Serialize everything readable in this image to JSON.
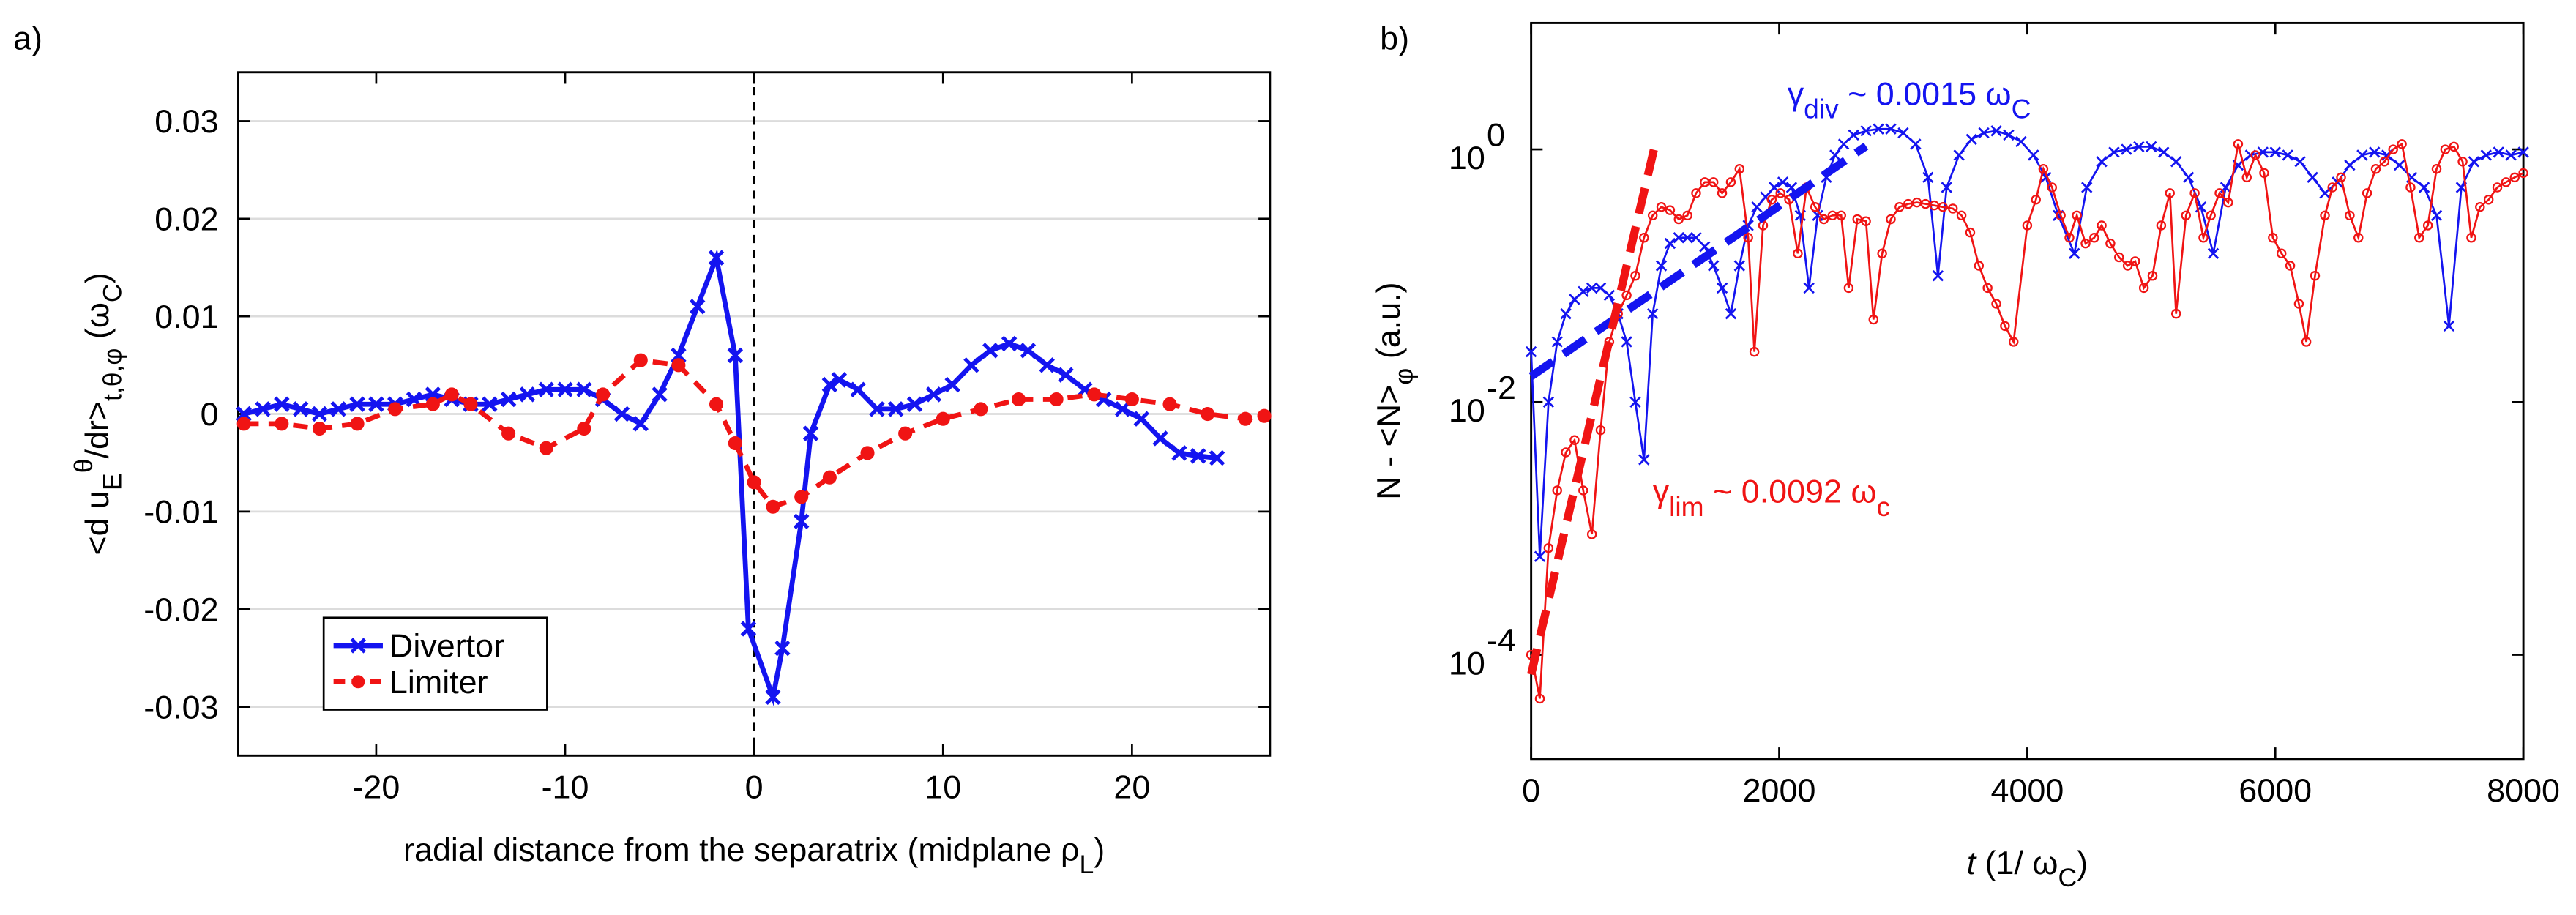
{
  "chart_data": [
    {
      "type": "line",
      "panel_label": "a)",
      "xlabel": [
        "radial distance from the separatrix (midplane ",
        "ρ",
        "L",
        ")"
      ],
      "ylabel": [
        "<d u",
        "E",
        "θ",
        "/dr>",
        "t,θ,φ",
        "  (ω",
        "C",
        ")"
      ],
      "xlim": [
        -27.3,
        27.3
      ],
      "xticks": [
        -20,
        -10,
        0,
        10,
        20
      ],
      "ylim": [
        -0.035,
        0.035
      ],
      "yticks": [
        -0.03,
        -0.02,
        -0.01,
        0,
        0.01,
        0.02,
        0.03
      ],
      "grid": true,
      "vline_x": 0,
      "legend": "lower left",
      "series": [
        {
          "name": "Divertor",
          "color": "#1414f0",
          "marker": "x",
          "linestyle": "solid",
          "x": [
            -27,
            -26,
            -25,
            -24,
            -23,
            -22,
            -21,
            -20,
            -19,
            -18,
            -17,
            -16,
            -15,
            -14,
            -13,
            -12,
            -11,
            -10,
            -9,
            -8,
            -7,
            -6,
            -5,
            -4,
            -3,
            -2,
            -1,
            -0.3,
            1,
            1.5,
            2.5,
            3,
            4,
            4.5,
            5.5,
            6.5,
            7.5,
            8.5,
            9.5,
            10.5,
            11.5,
            12.5,
            13.5,
            14.5,
            15.5,
            16.5,
            17.5,
            18.5,
            19.5,
            20.5,
            21.5,
            22.5,
            23.5,
            24.5
          ],
          "values": [
            0,
            0.0005,
            0.001,
            0.0005,
            0,
            0.0005,
            0.001,
            0.001,
            0.001,
            0.0015,
            0.002,
            0.0015,
            0.001,
            0.001,
            0.0015,
            0.002,
            0.0025,
            0.0025,
            0.0025,
            0.0015,
            0,
            -0.001,
            0.002,
            0.006,
            0.011,
            0.016,
            0.006,
            -0.022,
            -0.029,
            -0.024,
            -0.011,
            -0.002,
            0.003,
            0.0035,
            0.0025,
            0.0005,
            0.0005,
            0.001,
            0.002,
            0.003,
            0.005,
            0.0065,
            0.0072,
            0.0065,
            0.005,
            0.004,
            0.0025,
            0.0015,
            0.0005,
            -0.0005,
            -0.0025,
            -0.004,
            -0.0043,
            -0.0045
          ]
        },
        {
          "name": "Limiter",
          "color": "#f01414",
          "marker": "o",
          "linestyle": "dashed",
          "x": [
            -27,
            -25,
            -23,
            -21,
            -19,
            -17,
            -16,
            -15,
            -13,
            -11,
            -9,
            -8,
            -6,
            -4,
            -2,
            -1,
            0,
            1,
            2.5,
            4,
            6,
            8,
            10,
            12,
            14,
            16,
            18,
            20,
            22,
            24,
            26,
            27
          ],
          "values": [
            -0.001,
            -0.001,
            -0.0015,
            -0.001,
            0.0005,
            0.001,
            0.002,
            0.001,
            -0.002,
            -0.0035,
            -0.0015,
            0.002,
            0.0055,
            0.005,
            0.001,
            -0.003,
            -0.007,
            -0.0095,
            -0.0085,
            -0.0065,
            -0.004,
            -0.002,
            -0.0005,
            0.0005,
            0.0015,
            0.0015,
            0.002,
            0.0015,
            0.001,
            0,
            -0.0005,
            -0.0002
          ]
        }
      ]
    },
    {
      "type": "line",
      "panel_label": "b)",
      "yscale": "log",
      "xlabel": [
        "t",
        " (1/ ω",
        "C",
        ")"
      ],
      "ylabel": [
        "N - <N>",
        "φ",
        "  (a.u.)"
      ],
      "xlim": [
        0,
        8000
      ],
      "xticks": [
        0,
        2000,
        4000,
        6000,
        8000
      ],
      "ylim": [
        1.5e-05,
        10
      ],
      "yticks": [
        {
          "value": 0.0001,
          "label": "10",
          "exponent": "-4"
        },
        {
          "value": 0.01,
          "label": "10",
          "exponent": "-2"
        },
        {
          "value": 1,
          "label": "10",
          "exponent": "0"
        }
      ],
      "grid": false,
      "series": [
        {
          "name": "Divertor",
          "color": "#1414f0",
          "marker": "x",
          "x": [
            0,
            70,
            140,
            210,
            280,
            350,
            420,
            490,
            560,
            630,
            700,
            770,
            840,
            910,
            980,
            1050,
            1120,
            1190,
            1260,
            1330,
            1400,
            1470,
            1540,
            1610,
            1680,
            1750,
            1820,
            1890,
            1960,
            2030,
            2100,
            2170,
            2240,
            2310,
            2380,
            2450,
            2520,
            2600,
            2700,
            2800,
            2900,
            3000,
            3100,
            3200,
            3280,
            3350,
            3450,
            3550,
            3650,
            3750,
            3850,
            3950,
            4050,
            4150,
            4250,
            4380,
            4480,
            4600,
            4700,
            4800,
            4900,
            5000,
            5100,
            5200,
            5300,
            5400,
            5500,
            5600,
            5700,
            5800,
            5900,
            6000,
            6100,
            6200,
            6300,
            6400,
            6500,
            6600,
            6700,
            6800,
            6900,
            7000,
            7100,
            7200,
            7300,
            7400,
            7500,
            7600,
            7700,
            7800,
            7900,
            8000
          ],
          "values": [
            0.025,
            0.0006,
            0.01,
            0.03,
            0.05,
            0.065,
            0.075,
            0.08,
            0.08,
            0.07,
            0.05,
            0.03,
            0.01,
            0.0035,
            0.05,
            0.12,
            0.18,
            0.2,
            0.2,
            0.2,
            0.17,
            0.12,
            0.08,
            0.05,
            0.12,
            0.25,
            0.35,
            0.42,
            0.5,
            0.55,
            0.5,
            0.3,
            0.08,
            0.3,
            0.6,
            0.9,
            1.1,
            1.3,
            1.4,
            1.45,
            1.45,
            1.35,
            1.1,
            0.6,
            0.1,
            0.5,
            0.9,
            1.2,
            1.35,
            1.4,
            1.3,
            1.15,
            0.9,
            0.6,
            0.3,
            0.15,
            0.5,
            0.8,
            0.95,
            1.0,
            1.05,
            1.05,
            0.95,
            0.8,
            0.6,
            0.35,
            0.15,
            0.5,
            0.75,
            0.9,
            0.95,
            0.95,
            0.9,
            0.8,
            0.6,
            0.45,
            0.55,
            0.75,
            0.9,
            0.95,
            0.9,
            0.75,
            0.6,
            0.5,
            0.3,
            0.04,
            0.5,
            0.8,
            0.9,
            0.95,
            0.9,
            0.95
          ]
        },
        {
          "name": "Limiter",
          "color": "#f01414",
          "marker": "o",
          "x": [
            0,
            70,
            140,
            210,
            280,
            350,
            420,
            490,
            560,
            630,
            700,
            770,
            840,
            910,
            980,
            1050,
            1120,
            1190,
            1260,
            1330,
            1400,
            1470,
            1540,
            1610,
            1680,
            1750,
            1800,
            1870,
            1940,
            2010,
            2080,
            2150,
            2220,
            2290,
            2360,
            2430,
            2500,
            2560,
            2630,
            2700,
            2760,
            2830,
            2900,
            2970,
            3040,
            3110,
            3180,
            3250,
            3320,
            3400,
            3470,
            3540,
            3610,
            3680,
            3750,
            3820,
            3890,
            4000,
            4070,
            4130,
            4200,
            4270,
            4340,
            4400,
            4470,
            4540,
            4600,
            4670,
            4740,
            4810,
            4870,
            4940,
            5010,
            5080,
            5150,
            5200,
            5280,
            5350,
            5420,
            5480,
            5550,
            5620,
            5700,
            5770,
            5840,
            5910,
            5980,
            6050,
            6120,
            6190,
            6250,
            6320,
            6400,
            6460,
            6530,
            6600,
            6670,
            6740,
            6810,
            6880,
            6950,
            7020,
            7090,
            7160,
            7230,
            7300,
            7370,
            7440,
            7510,
            7580,
            7650,
            7720,
            7790,
            7860,
            7930,
            8000
          ],
          "values": [
            0.0001,
            4.5e-05,
            0.0007,
            0.002,
            0.004,
            0.005,
            0.002,
            0.0009,
            0.006,
            0.03,
            0.05,
            0.07,
            0.1,
            0.2,
            0.3,
            0.35,
            0.33,
            0.28,
            0.3,
            0.45,
            0.55,
            0.55,
            0.45,
            0.55,
            0.7,
            0.2,
            0.025,
            0.25,
            0.4,
            0.45,
            0.4,
            0.15,
            0.5,
            0.35,
            0.28,
            0.3,
            0.3,
            0.08,
            0.28,
            0.27,
            0.045,
            0.15,
            0.28,
            0.35,
            0.37,
            0.38,
            0.37,
            0.36,
            0.35,
            0.34,
            0.3,
            0.22,
            0.12,
            0.08,
            0.06,
            0.04,
            0.03,
            0.25,
            0.4,
            0.7,
            0.5,
            0.3,
            0.2,
            0.3,
            0.18,
            0.2,
            0.25,
            0.18,
            0.14,
            0.12,
            0.13,
            0.08,
            0.1,
            0.25,
            0.45,
            0.05,
            0.3,
            0.45,
            0.2,
            0.3,
            0.45,
            0.38,
            1.1,
            0.6,
            0.9,
            0.65,
            0.2,
            0.15,
            0.12,
            0.06,
            0.03,
            0.1,
            0.3,
            0.5,
            0.6,
            0.3,
            0.2,
            0.45,
            0.7,
            0.8,
            1.0,
            1.1,
            0.5,
            0.2,
            0.25,
            0.7,
            1.0,
            1.05,
            0.8,
            0.2,
            0.35,
            0.4,
            0.5,
            0.55,
            0.6,
            0.65
          ]
        }
      ],
      "fits": [
        {
          "color": "#1414f0",
          "x": [
            0,
            2700
          ],
          "values": [
            0.016,
            1.06
          ]
        },
        {
          "color": "#f01414",
          "x": [
            0,
            1000
          ],
          "values": [
            7e-05,
            1.1
          ]
        }
      ],
      "annotations": [
        {
          "color": "#1414f0",
          "parts": [
            "γ",
            "div",
            " ~ 0.0015   ",
            "ω",
            "C"
          ]
        },
        {
          "color": "#f01414",
          "parts": [
            "γ",
            "lim",
            " ~ 0.0092   ",
            "ω",
            "c"
          ]
        }
      ]
    }
  ]
}
